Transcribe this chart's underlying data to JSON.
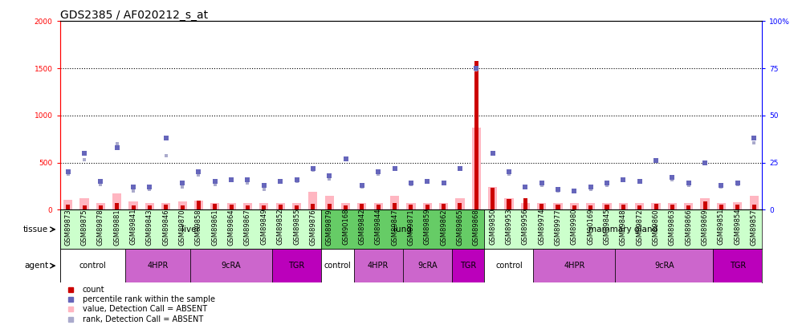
{
  "title": "GDS2385 / AF020212_s_at",
  "samples": [
    "GSM89873",
    "GSM89875",
    "GSM89878",
    "GSM89881",
    "GSM89841",
    "GSM89843",
    "GSM89846",
    "GSM89870",
    "GSM89858",
    "GSM89861",
    "GSM89864",
    "GSM89867",
    "GSM89849",
    "GSM89852",
    "GSM89855",
    "GSM89876",
    "GSM89879",
    "GSM90168",
    "GSM89842",
    "GSM89844",
    "GSM89847",
    "GSM89871",
    "GSM89859",
    "GSM89862",
    "GSM89865",
    "GSM89868",
    "GSM89850",
    "GSM89953",
    "GSM89956",
    "GSM89974",
    "GSM89977",
    "GSM89980",
    "GSM90169",
    "GSM89845",
    "GSM89848",
    "GSM89872",
    "GSM89860",
    "GSM89863",
    "GSM89866",
    "GSM89869",
    "GSM89851",
    "GSM89854",
    "GSM89857"
  ],
  "count_values": [
    55,
    50,
    45,
    75,
    50,
    45,
    55,
    50,
    95,
    60,
    55,
    50,
    48,
    55,
    48,
    65,
    65,
    48,
    60,
    55,
    75,
    52,
    55,
    60,
    75,
    1580,
    230,
    110,
    120,
    65,
    55,
    50,
    48,
    52,
    55,
    48,
    60,
    55,
    50,
    85,
    52,
    55,
    55
  ],
  "value_absent": [
    105,
    125,
    75,
    170,
    85,
    75,
    75,
    85,
    95,
    75,
    75,
    75,
    75,
    70,
    75,
    190,
    150,
    75,
    75,
    75,
    150,
    75,
    75,
    75,
    125,
    870,
    240,
    125,
    75,
    75,
    70,
    75,
    75,
    75,
    75,
    75,
    75,
    70,
    75,
    125,
    75,
    80,
    150
  ],
  "percentile_rank": [
    20,
    30,
    15,
    33,
    12,
    12,
    38,
    14,
    20,
    15,
    16,
    16,
    13,
    15,
    16,
    22,
    18,
    27,
    13,
    20,
    22,
    14,
    15,
    14,
    22,
    75,
    30,
    20,
    12,
    14,
    11,
    10,
    12,
    14,
    16,
    15,
    26,
    17,
    14,
    25,
    13,
    14,
    38
  ],
  "rank_absent": [
    380,
    530,
    270,
    700,
    200,
    220,
    570,
    240,
    370,
    270,
    310,
    280,
    220,
    290,
    300,
    420,
    330,
    530,
    240,
    380,
    430,
    270,
    300,
    280,
    430,
    1480,
    600,
    380,
    230,
    260,
    200,
    190,
    220,
    260,
    310,
    300,
    510,
    320,
    260,
    490,
    240,
    270,
    710
  ],
  "tissue_groups": [
    {
      "label": "liver",
      "start": 0,
      "end": 16,
      "color": "#CCFFCC"
    },
    {
      "label": "lung",
      "start": 16,
      "end": 26,
      "color": "#66CC66"
    },
    {
      "label": "mammary gland",
      "start": 26,
      "end": 43,
      "color": "#CCFFCC"
    }
  ],
  "agent_groups": [
    {
      "label": "control",
      "start": 0,
      "end": 4,
      "color": "#FFFFFF"
    },
    {
      "label": "4HPR",
      "start": 4,
      "end": 8,
      "color": "#CC66CC"
    },
    {
      "label": "9cRA",
      "start": 8,
      "end": 13,
      "color": "#CC66CC"
    },
    {
      "label": "TGR",
      "start": 13,
      "end": 16,
      "color": "#CC00CC"
    },
    {
      "label": "control",
      "start": 16,
      "end": 18,
      "color": "#FFFFFF"
    },
    {
      "label": "4HPR",
      "start": 18,
      "end": 21,
      "color": "#CC66CC"
    },
    {
      "label": "9cRA",
      "start": 21,
      "end": 24,
      "color": "#CC66CC"
    },
    {
      "label": "TGR",
      "start": 24,
      "end": 26,
      "color": "#CC00CC"
    },
    {
      "label": "control",
      "start": 26,
      "end": 29,
      "color": "#FFFFFF"
    },
    {
      "label": "4HPR",
      "start": 29,
      "end": 34,
      "color": "#CC66CC"
    },
    {
      "label": "9cRA",
      "start": 34,
      "end": 40,
      "color": "#CC66CC"
    },
    {
      "label": "TGR",
      "start": 40,
      "end": 43,
      "color": "#CC00CC"
    }
  ],
  "ylim_left": [
    0,
    2000
  ],
  "ylim_right": [
    0,
    100
  ],
  "yticks_left": [
    0,
    500,
    1000,
    1500,
    2000
  ],
  "yticks_right": [
    0,
    25,
    50,
    75,
    100
  ],
  "bar_color_count": "#CC0000",
  "bar_color_absent": "#FFB6C1",
  "dot_color_percentile": "#6666BB",
  "dot_color_rank_absent": "#AAAACC",
  "bg_color": "#FFFFFF",
  "title_fontsize": 10,
  "tick_fontsize": 6,
  "label_fontsize": 7.5
}
